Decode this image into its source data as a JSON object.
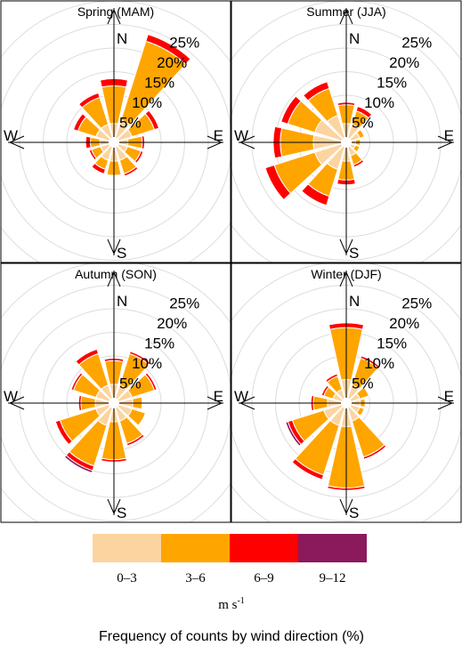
{
  "chart_data": {
    "type": "wind-rose",
    "bins": [
      "0–3",
      "3–6",
      "6–9",
      "9–12"
    ],
    "bin_colors": [
      "#fcd4a0",
      "#ffa500",
      "#ff0000",
      "#8b1a5c"
    ],
    "units": "m s",
    "units_superscript": "-1",
    "caption": "Frequency of counts by wind direction (%)",
    "ring_labels": [
      "5%",
      "10%",
      "15%",
      "20%",
      "25%"
    ],
    "rings_max_visible": [
      5,
      10,
      15,
      20,
      25,
      30
    ],
    "directions": [
      "N",
      "E",
      "S",
      "W"
    ],
    "sector_angles": [
      0,
      30,
      60,
      90,
      120,
      150,
      180,
      210,
      240,
      270,
      300,
      330
    ],
    "panels": [
      {
        "title": "Spring (MAM)",
        "sectors": [
          [
            4,
            8,
            1.5,
            0
          ],
          [
            5,
            17.5,
            1.5,
            0
          ],
          [
            4,
            5,
            1,
            0
          ],
          [
            3,
            3,
            0.5,
            0
          ],
          [
            3,
            3,
            0.5,
            0
          ],
          [
            4,
            3,
            0.5,
            0
          ],
          [
            4,
            3,
            0,
            0
          ],
          [
            4,
            2,
            1,
            0
          ],
          [
            3,
            2,
            0.5,
            0
          ],
          [
            3,
            2,
            1,
            0
          ],
          [
            4,
            4,
            1,
            0
          ],
          [
            4,
            6,
            1,
            0
          ]
        ]
      },
      {
        "title": "Summer (JJA)",
        "sectors": [
          [
            4,
            4,
            0.5,
            0
          ],
          [
            4,
            3,
            1,
            0
          ],
          [
            3,
            1,
            0,
            0
          ],
          [
            2,
            1,
            0,
            0
          ],
          [
            2,
            1,
            0,
            0
          ],
          [
            3,
            2,
            0.5,
            0
          ],
          [
            4,
            4,
            1,
            0
          ],
          [
            6,
            6,
            2,
            0
          ],
          [
            7,
            9,
            2,
            0
          ],
          [
            7,
            7,
            1.5,
            0
          ],
          [
            7,
            6,
            1.5,
            0
          ],
          [
            6,
            6,
            1.5,
            0
          ]
        ]
      },
      {
        "title": "Autumn (SON)",
        "sectors": [
          [
            4,
            5,
            0.5,
            0
          ],
          [
            4,
            7,
            0.5,
            0
          ],
          [
            4,
            5,
            0.5,
            0
          ],
          [
            4,
            2,
            0,
            0
          ],
          [
            4,
            3,
            0,
            0
          ],
          [
            4,
            5,
            0.5,
            0
          ],
          [
            4,
            8,
            0.5,
            0
          ],
          [
            5,
            9,
            1,
            0.5
          ],
          [
            4,
            8,
            1,
            0
          ],
          [
            4,
            3,
            0.5,
            0
          ],
          [
            4,
            5,
            0.5,
            0
          ],
          [
            4,
            7,
            1,
            0
          ]
        ]
      },
      {
        "title": "Winter (DJF)",
        "sectors": [
          [
            5,
            11,
            1,
            0
          ],
          [
            4,
            6,
            0.5,
            0
          ],
          [
            3,
            2,
            0,
            0
          ],
          [
            3,
            1,
            0,
            0
          ],
          [
            3,
            1,
            0,
            0
          ],
          [
            4,
            8,
            0.5,
            0
          ],
          [
            5,
            13,
            0.5,
            0
          ],
          [
            5,
            11,
            1,
            0
          ],
          [
            5,
            7,
            1,
            0.5
          ],
          [
            4,
            3,
            0.5,
            0
          ],
          [
            3,
            2,
            0.5,
            0
          ],
          [
            3,
            3,
            0.5,
            0
          ]
        ]
      }
    ]
  }
}
